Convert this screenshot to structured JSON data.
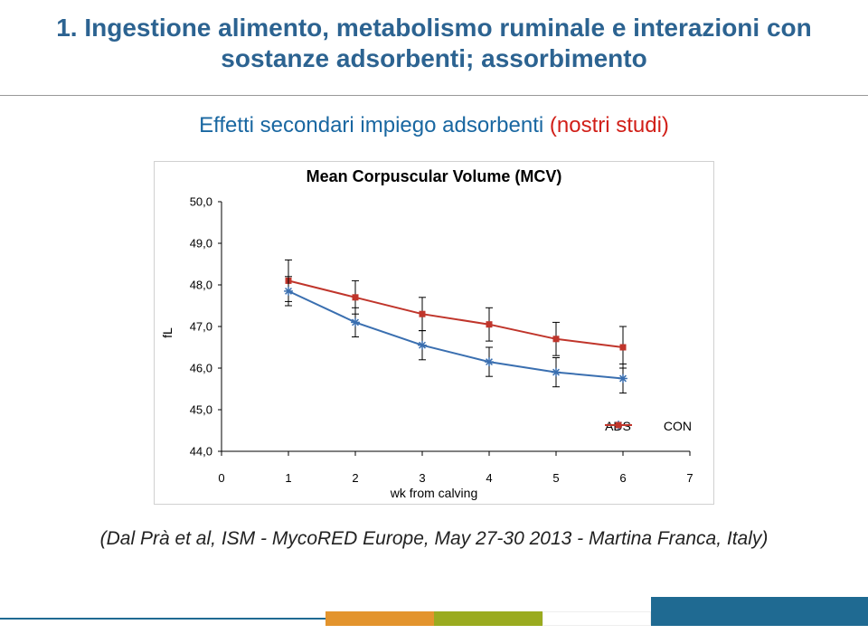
{
  "title": "1. Ingestione alimento, metabolismo ruminale e interazioni con sostanze adsorbenti; assorbimento",
  "subtitle_blue": "Effetti secondari impiego adsorbenti ",
  "subtitle_red": "(nostri studi)",
  "attribution": "(Dal Prà et al, ISM - MycoRED Europe, May 27-30 2013 - Martina Franca, Italy)",
  "chart": {
    "type": "line",
    "title": "Mean Corpuscular Volume (MCV)",
    "title_fontsize": 18,
    "font_family": "Comic Sans MS",
    "background_color": "#ffffff",
    "plot_border_color": "#000000",
    "ylabel": "fL",
    "xlabel": "wk from calving",
    "label_fontsize": 14,
    "xlim": [
      0,
      7
    ],
    "ylim": [
      44.0,
      50.0
    ],
    "xticks": [
      0,
      1,
      2,
      3,
      4,
      5,
      6,
      7
    ],
    "yticks": [
      44.0,
      45.0,
      46.0,
      47.0,
      48.0,
      49.0,
      50.0
    ],
    "ytick_labels": [
      "44,0",
      "45,0",
      "46,0",
      "47,0",
      "48,0",
      "49,0",
      "50,0"
    ],
    "series": {
      "ads": {
        "label": "ADS",
        "color": "#3a6fb0",
        "marker": "asterisk",
        "marker_color": "#3a6fb0",
        "line_width": 2,
        "x": [
          1,
          2,
          3,
          4,
          5,
          6
        ],
        "y": [
          47.85,
          47.1,
          46.55,
          46.15,
          45.9,
          45.75
        ],
        "err": [
          0.35,
          0.35,
          0.35,
          0.35,
          0.35,
          0.35
        ]
      },
      "con": {
        "label": "CON",
        "color": "#c0352b",
        "marker": "square",
        "marker_color": "#c0352b",
        "line_width": 2,
        "x": [
          1,
          2,
          3,
          4,
          5,
          6
        ],
        "y": [
          48.1,
          47.7,
          47.3,
          47.05,
          46.7,
          46.5
        ],
        "err": [
          0.5,
          0.4,
          0.4,
          0.4,
          0.4,
          0.5
        ]
      }
    },
    "legend": {
      "position": "bottom-right",
      "items": [
        "ads",
        "con"
      ]
    },
    "grid": false,
    "marker_size": 7,
    "errorbar_cap_width": 8
  },
  "theme": {
    "title_color": "#2c6391",
    "band_colors": {
      "line": "#1f6a92",
      "orange": "#e3942d",
      "green": "#9aab1f",
      "teal": "#1f6a92"
    }
  }
}
